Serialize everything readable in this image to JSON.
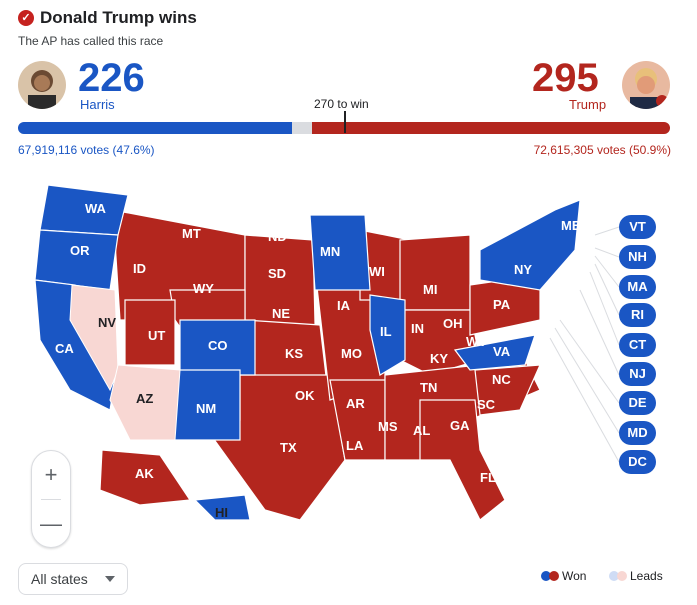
{
  "header": {
    "title": "Donald Trump wins",
    "subtitle": "The AP has called this race"
  },
  "harris": {
    "ev": "226",
    "name": "Harris",
    "votes": "67,919,116 votes (47.6%)",
    "color": "#1a56c4"
  },
  "trump": {
    "ev": "295",
    "name": "Trump",
    "votes": "72,615,305 votes (50.9%)",
    "color": "#b3261e"
  },
  "threshold": "270 to win",
  "ev_share": {
    "harris_won": 226,
    "harris_leads": 17,
    "trump": 295,
    "total": 538
  },
  "states": {
    "WA": "WA",
    "OR": "OR",
    "CA": "CA",
    "NV": "NV",
    "ID": "ID",
    "MT": "MT",
    "WY": "WY",
    "UT": "UT",
    "AZ": "AZ",
    "CO": "CO",
    "NM": "NM",
    "ND": "ND",
    "SD": "SD",
    "NE": "NE",
    "KS": "KS",
    "OK": "OK",
    "TX": "TX",
    "MN": "MN",
    "IA": "IA",
    "MO": "MO",
    "AR": "AR",
    "LA": "LA",
    "WI": "WI",
    "IL": "IL",
    "MI": "MI",
    "IN": "IN",
    "OH": "OH",
    "KY": "KY",
    "TN": "TN",
    "MS": "MS",
    "AL": "AL",
    "GA": "GA",
    "FL": "FL",
    "SC": "SC",
    "NC": "NC",
    "VA": "VA",
    "WV": "WV",
    "PA": "PA",
    "NY": "NY",
    "ME": "ME",
    "AK": "AK",
    "HI": "HI"
  },
  "east_pills": [
    "VT",
    "NH",
    "MA",
    "RI",
    "CT",
    "NJ",
    "DE",
    "MD",
    "DC"
  ],
  "zoom": {
    "in": "+",
    "out": "—"
  },
  "filter": {
    "value": "All states"
  },
  "legend": {
    "won": "Won",
    "leads": "Leads",
    "blue": "#1a56c4",
    "red": "#b3261e",
    "lblue": "#cfdcf5",
    "lred": "#f8d7d3"
  }
}
